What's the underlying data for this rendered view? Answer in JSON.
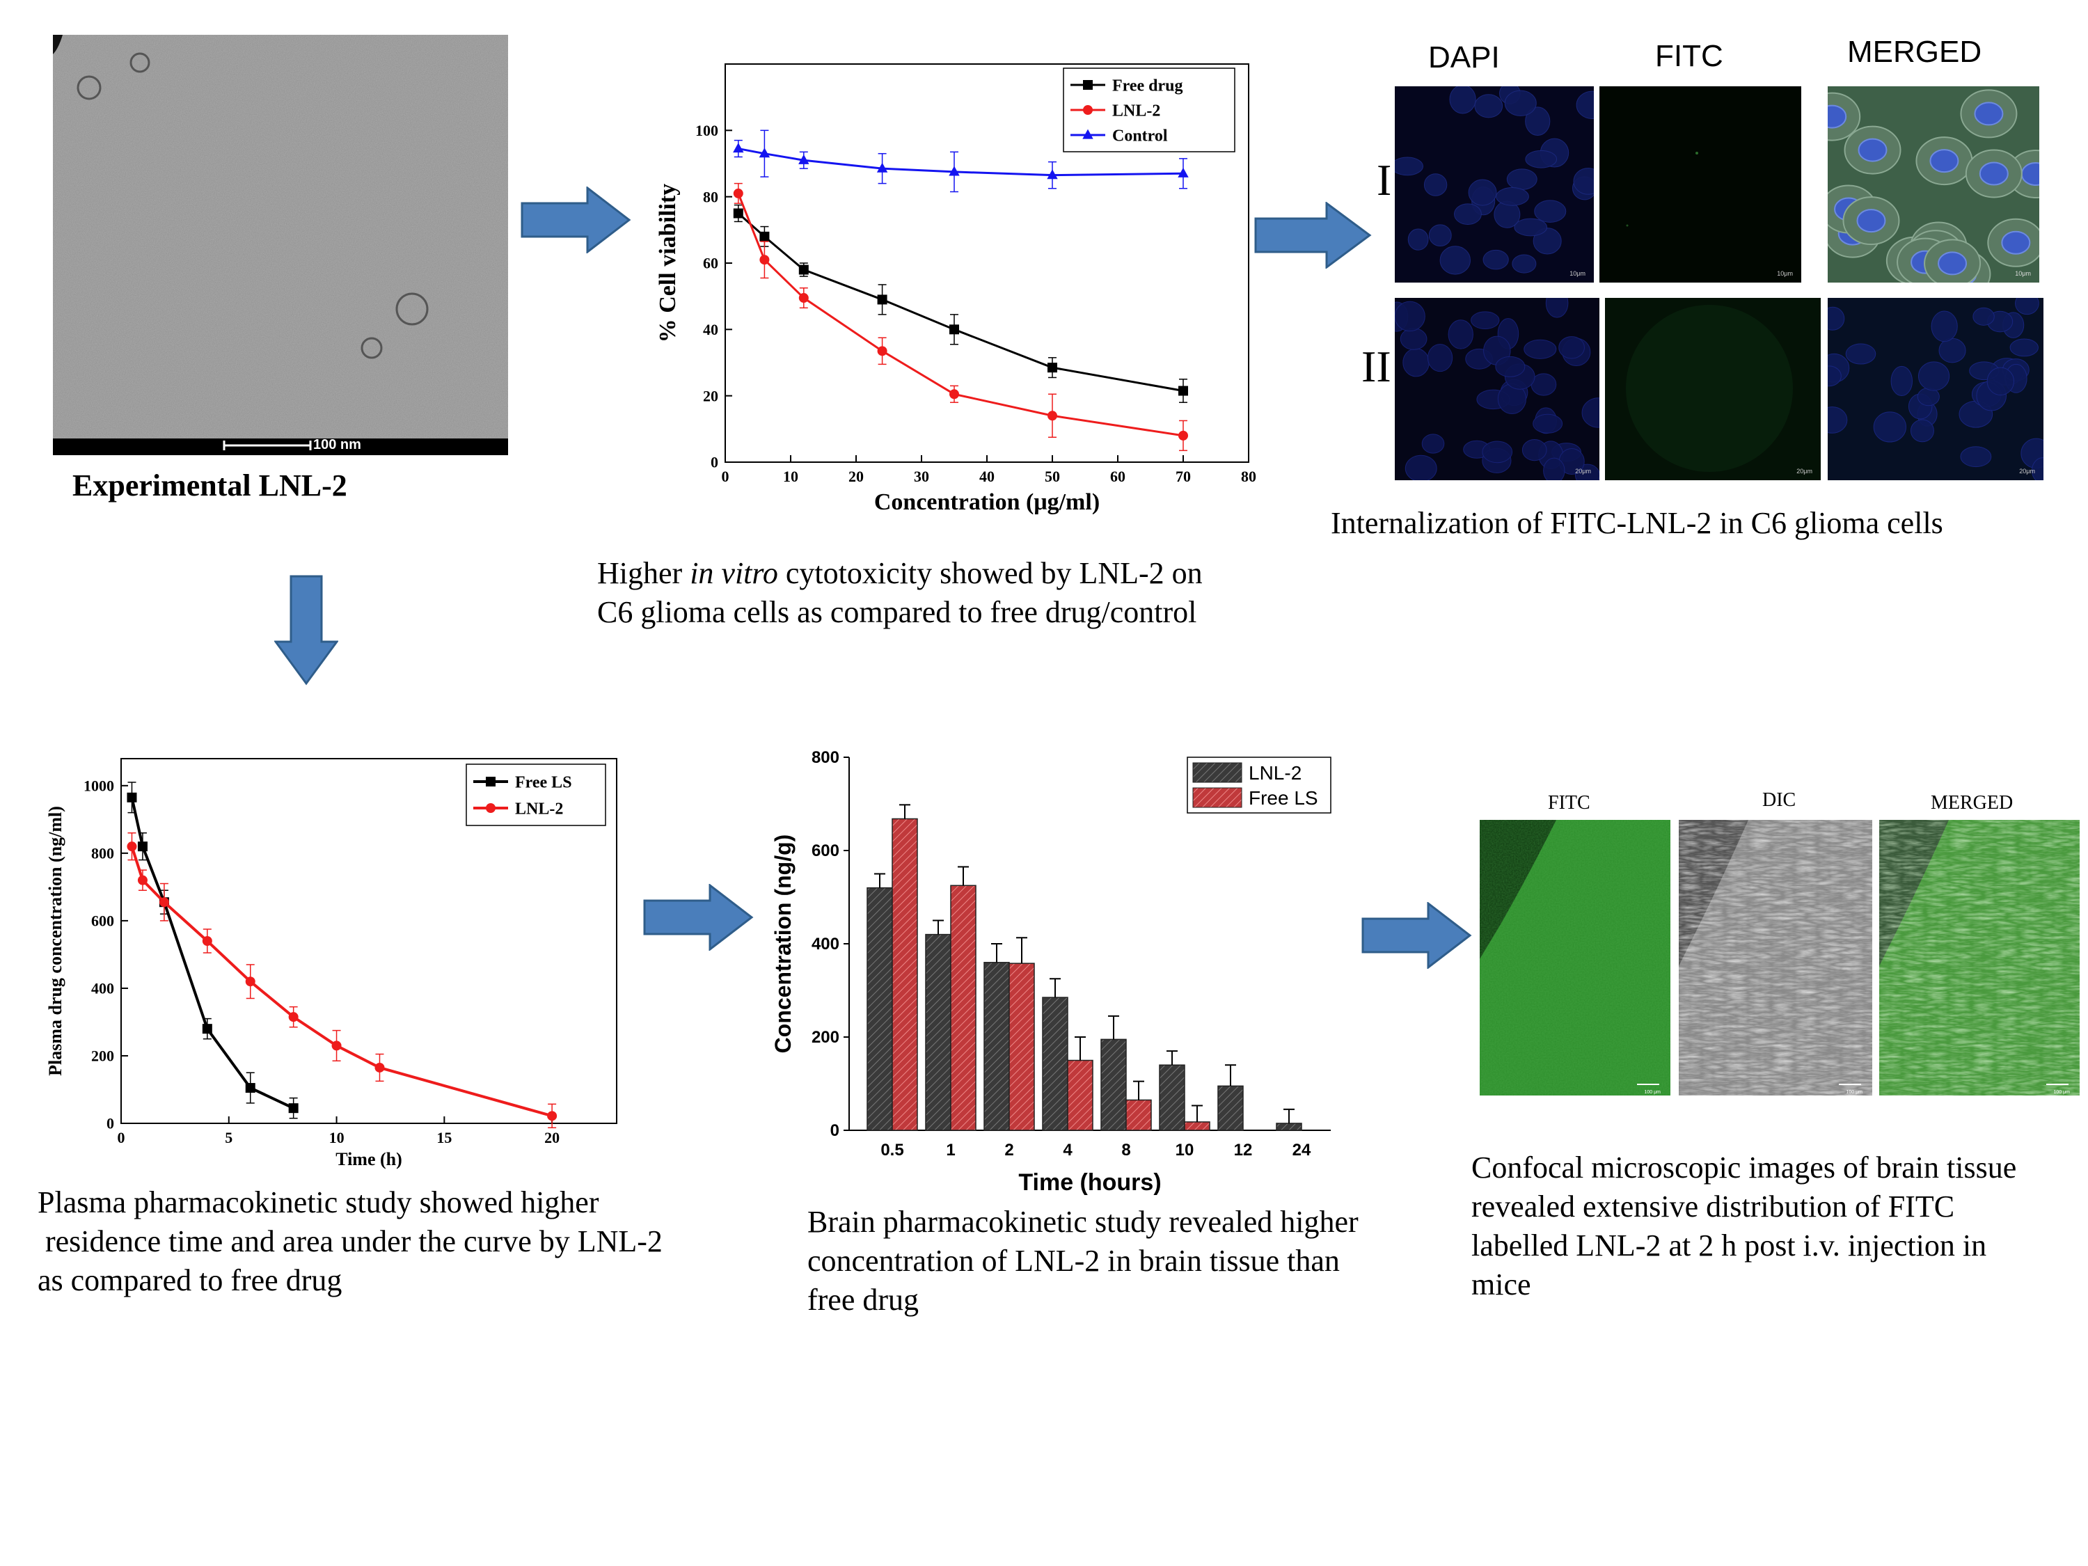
{
  "tem": {
    "scale_label": "100 nm",
    "title": "Experimental LNL-2"
  },
  "viability": {
    "caption_pre": "Higher ",
    "caption_italic": "in vitro",
    "caption_post": " cytotoxicity showed by LNL-2 on",
    "caption_line2": "C6 glioma cells as compared to free drug/control"
  },
  "internalization": {
    "col_labels": [
      "DAPI",
      "FITC",
      "MERGED"
    ],
    "row_labels": [
      "I",
      "II"
    ],
    "scale_row1": "10μm",
    "scale_row2": "20μm",
    "caption": "Internalization of FITC-LNL-2 in C6 glioma cells"
  },
  "plasma": {
    "caption_line1": "Plasma pharmacokinetic study showed higher",
    "caption_line2": " residence time and area under the curve by LNL-2",
    "caption_line3": "as compared to free drug"
  },
  "brain": {
    "caption_line1": "Brain pharmacokinetic study revealed higher",
    "caption_line2": "concentration of LNL-2 in brain tissue than",
    "caption_line3": "free drug"
  },
  "confocal": {
    "col_labels": [
      "FITC",
      "DIC",
      "MERGED"
    ],
    "scale": "100 μm",
    "caption_line1": "Confocal microscopic images of brain tissue",
    "caption_line2": "revealed extensive distribution of FITC",
    "caption_line3": "labelled LNL-2 at 2 h post i.v. injection in",
    "caption_line4": "mice"
  },
  "colors": {
    "arrow_fill": "#4a7ebb",
    "arrow_stroke": "#2f5d8a",
    "black_series": "#000000",
    "red_series": "#ee1c1c",
    "blue_series": "#1414f0",
    "bar_dark": "#3a3a3a",
    "bar_red": "#c0393b"
  },
  "chart_data": [
    {
      "type": "line",
      "xlabel": "Concentration (μg/ml)",
      "ylabel": "% Cell viability",
      "xlim": [
        0,
        80
      ],
      "ylim": [
        0,
        120
      ],
      "xticks": [
        0,
        10,
        20,
        30,
        40,
        50,
        60,
        70,
        80
      ],
      "yticks": [
        0,
        20,
        40,
        60,
        80,
        100
      ],
      "legend_position": "top-right",
      "series": [
        {
          "name": "Free drug",
          "marker": "square",
          "color": "#000000",
          "x": [
            2,
            6,
            12,
            24,
            35,
            50,
            70
          ],
          "y": [
            75,
            68,
            58,
            49,
            40,
            28.5,
            21.5
          ],
          "err": [
            2.5,
            3,
            2,
            4.5,
            4.5,
            3,
            3.5
          ]
        },
        {
          "name": "LNL-2",
          "marker": "circle",
          "color": "#ee1c1c",
          "x": [
            2,
            6,
            12,
            24,
            35,
            50,
            70
          ],
          "y": [
            81,
            61,
            49.5,
            33.5,
            20.5,
            14,
            8
          ],
          "err": [
            3,
            5.5,
            3,
            4,
            2.5,
            6.5,
            4.5
          ]
        },
        {
          "name": "Control",
          "marker": "triangle",
          "color": "#1414f0",
          "x": [
            2,
            6,
            12,
            24,
            35,
            50,
            70
          ],
          "y": [
            94.5,
            93,
            91,
            88.5,
            87.5,
            86.5,
            87
          ],
          "err": [
            2.5,
            7,
            2.5,
            4.5,
            6,
            4,
            4.5
          ]
        }
      ]
    },
    {
      "type": "line",
      "xlabel": "Time (h)",
      "ylabel": "Plasma drug concentration (ng/ml)",
      "xlim": [
        0,
        23
      ],
      "ylim": [
        0,
        1080
      ],
      "xticks": [
        0,
        5,
        10,
        15,
        20
      ],
      "yticks": [
        0,
        200,
        400,
        600,
        800,
        1000
      ],
      "legend_position": "top-right",
      "series": [
        {
          "name": "Free LS",
          "marker": "square",
          "color": "#000000",
          "x": [
            0.5,
            1,
            2,
            4,
            6,
            8
          ],
          "y": [
            965,
            820,
            655,
            280,
            105,
            45
          ],
          "err": [
            45,
            40,
            35,
            30,
            45,
            30
          ]
        },
        {
          "name": "LNL-2",
          "marker": "circle",
          "color": "#ee1c1c",
          "x": [
            0.5,
            1,
            2,
            4.0,
            6,
            8,
            10,
            12,
            20
          ],
          "y": [
            820,
            720,
            655,
            540,
            420,
            315,
            230,
            165,
            22
          ],
          "err": [
            40,
            30,
            55,
            35,
            50,
            30,
            45,
            40,
            35
          ]
        }
      ]
    },
    {
      "type": "bar",
      "xlabel": "Time (hours)",
      "ylabel": "Concentration (ng/g)",
      "ylim": [
        0,
        800
      ],
      "yticks": [
        0,
        200,
        400,
        600,
        800
      ],
      "categories": [
        "0.5",
        "1",
        "2",
        "4",
        "8",
        "10",
        "12",
        "24"
      ],
      "legend_position": "top-right",
      "series": [
        {
          "name": "LNL-2",
          "color": "#3a3a3a",
          "values": [
            520,
            420,
            360,
            285,
            195,
            140,
            95,
            15
          ],
          "err": [
            30,
            30,
            40,
            40,
            50,
            30,
            45,
            30
          ]
        },
        {
          "name": "Free LS",
          "color": "#c0393b",
          "values": [
            668,
            525,
            358,
            150,
            65,
            18,
            null,
            null
          ],
          "err": [
            30,
            40,
            55,
            50,
            40,
            35,
            null,
            null
          ]
        }
      ]
    }
  ]
}
